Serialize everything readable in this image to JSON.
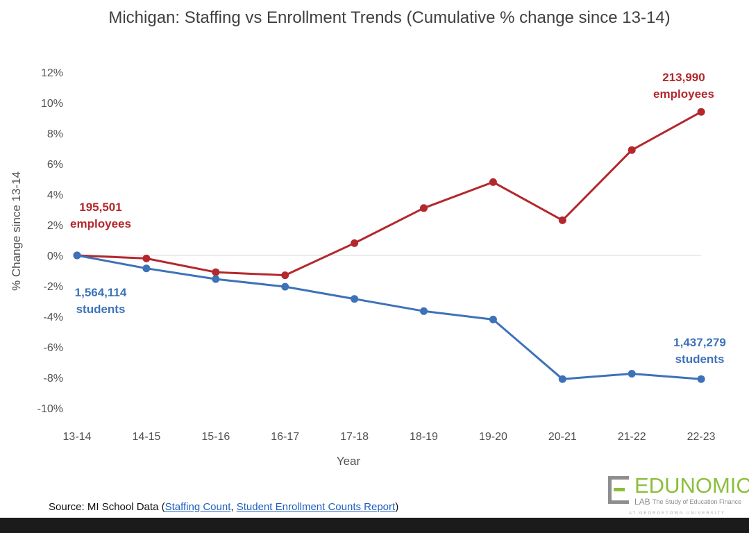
{
  "chart_data": {
    "type": "line",
    "title": "Michigan: Staffing vs Enrollment Trends (Cumulative % change since 13-14)",
    "xlabel": "Year",
    "ylabel": "% Change since 13-14",
    "categories": [
      "13-14",
      "14-15",
      "15-16",
      "16-17",
      "17-18",
      "18-19",
      "19-20",
      "20-21",
      "21-22",
      "22-23"
    ],
    "ylim": [
      -10,
      12
    ],
    "yticks": [
      -10,
      -8,
      -6,
      -4,
      -2,
      0,
      2,
      4,
      6,
      8,
      10,
      12
    ],
    "ytick_labels": [
      "-10%",
      "-8%",
      "-6%",
      "-4%",
      "-2%",
      "0%",
      "2%",
      "4%",
      "6%",
      "8%",
      "10%",
      "12%"
    ],
    "series": [
      {
        "name": "Employees",
        "color": "#b3282d",
        "values": [
          0,
          -0.2,
          -1.1,
          -1.3,
          0.8,
          3.1,
          4.8,
          2.3,
          6.9,
          9.4
        ]
      },
      {
        "name": "Students",
        "color": "#3d72b8",
        "values": [
          0,
          -0.85,
          -1.55,
          -2.05,
          -2.85,
          -3.65,
          -4.2,
          -8.1,
          -7.75,
          -8.1
        ]
      }
    ],
    "annotations": [
      {
        "id": "emp-start",
        "series": "Employees",
        "lines": [
          "195,501",
          "employees"
        ]
      },
      {
        "id": "emp-end",
        "series": "Employees",
        "lines": [
          "213,990",
          "employees"
        ]
      },
      {
        "id": "stu-start",
        "series": "Students",
        "lines": [
          "1,564,114",
          "students"
        ]
      },
      {
        "id": "stu-end",
        "series": "Students",
        "lines": [
          "1,437,279",
          "students"
        ]
      }
    ]
  },
  "source": {
    "prefix": "Source: MI School Data (",
    "link1": "Staffing Count",
    "separator": ", ",
    "link2": "Student Enrollment Counts Report",
    "suffix": ")"
  },
  "logo": {
    "name": "EDUNOMICS",
    "lab": "LAB",
    "tagline": "The Study of Education Finance",
    "university": "AT GEORGETOWN UNIVERSITY"
  }
}
